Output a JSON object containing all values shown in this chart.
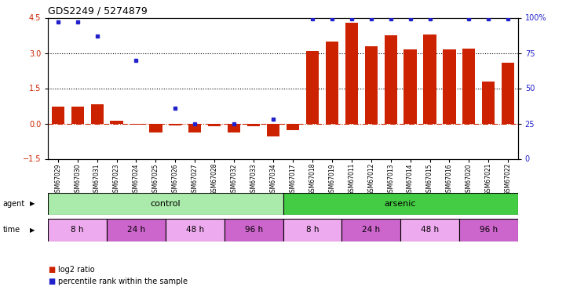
{
  "title": "GDS2249 / 5274879",
  "samples": [
    "GSM67029",
    "GSM67030",
    "GSM67031",
    "GSM67023",
    "GSM67024",
    "GSM67025",
    "GSM67026",
    "GSM67027",
    "GSM67028",
    "GSM67032",
    "GSM67033",
    "GSM67034",
    "GSM67017",
    "GSM67018",
    "GSM67019",
    "GSM67011",
    "GSM67012",
    "GSM67013",
    "GSM67014",
    "GSM67015",
    "GSM67016",
    "GSM67020",
    "GSM67021",
    "GSM67022"
  ],
  "log2_ratio": [
    0.72,
    0.72,
    0.82,
    0.13,
    -0.05,
    -0.38,
    -0.07,
    -0.38,
    -0.1,
    -0.38,
    -0.12,
    -0.55,
    -0.28,
    3.1,
    3.5,
    4.3,
    3.3,
    3.75,
    3.15,
    3.8,
    3.15,
    3.18,
    1.78,
    2.6
  ],
  "percentile_pct": [
    97,
    97,
    null,
    null,
    70,
    null,
    36,
    null,
    null,
    null,
    null,
    null,
    null,
    99,
    99,
    99,
    99,
    99,
    99,
    99,
    null,
    99,
    99,
    99
  ],
  "pct_control_extra": [
    null,
    null,
    87,
    null,
    null,
    null,
    null,
    null,
    null,
    null,
    null,
    null,
    null,
    null,
    null,
    null,
    null,
    null,
    null,
    null,
    null,
    null,
    null,
    null
  ],
  "ylim_left": [
    -1.5,
    4.5
  ],
  "ylim_right": [
    0,
    100
  ],
  "yticks_left": [
    -1.5,
    0.0,
    1.5,
    3.0,
    4.5
  ],
  "yticks_right": [
    0,
    25,
    50,
    75,
    100
  ],
  "hlines": [
    1.5,
    3.0
  ],
  "bar_color": "#cc2200",
  "dot_color": "#2222cc",
  "zero_line_color": "#cc2200",
  "agent_groups": [
    {
      "label": "control",
      "start": 0,
      "end": 12,
      "color": "#aaeaaa"
    },
    {
      "label": "arsenic",
      "start": 12,
      "end": 24,
      "color": "#44cc44"
    }
  ],
  "time_groups": [
    {
      "label": "8 h",
      "start": 0,
      "end": 3,
      "color": "#eeaaee"
    },
    {
      "label": "24 h",
      "start": 3,
      "end": 6,
      "color": "#cc66cc"
    },
    {
      "label": "48 h",
      "start": 6,
      "end": 9,
      "color": "#eeaaee"
    },
    {
      "label": "96 h",
      "start": 9,
      "end": 12,
      "color": "#cc66cc"
    },
    {
      "label": "8 h",
      "start": 12,
      "end": 15,
      "color": "#eeaaee"
    },
    {
      "label": "24 h",
      "start": 15,
      "end": 18,
      "color": "#cc66cc"
    },
    {
      "label": "48 h",
      "start": 18,
      "end": 21,
      "color": "#eeaaee"
    },
    {
      "label": "96 h",
      "start": 21,
      "end": 24,
      "color": "#cc66cc"
    }
  ],
  "legend_items": [
    {
      "label": "log2 ratio",
      "color": "#cc2200"
    },
    {
      "label": "percentile rank within the sample",
      "color": "#2222cc"
    }
  ],
  "background_color": "#ffffff",
  "agent_row_label": "agent",
  "time_row_label": "time"
}
